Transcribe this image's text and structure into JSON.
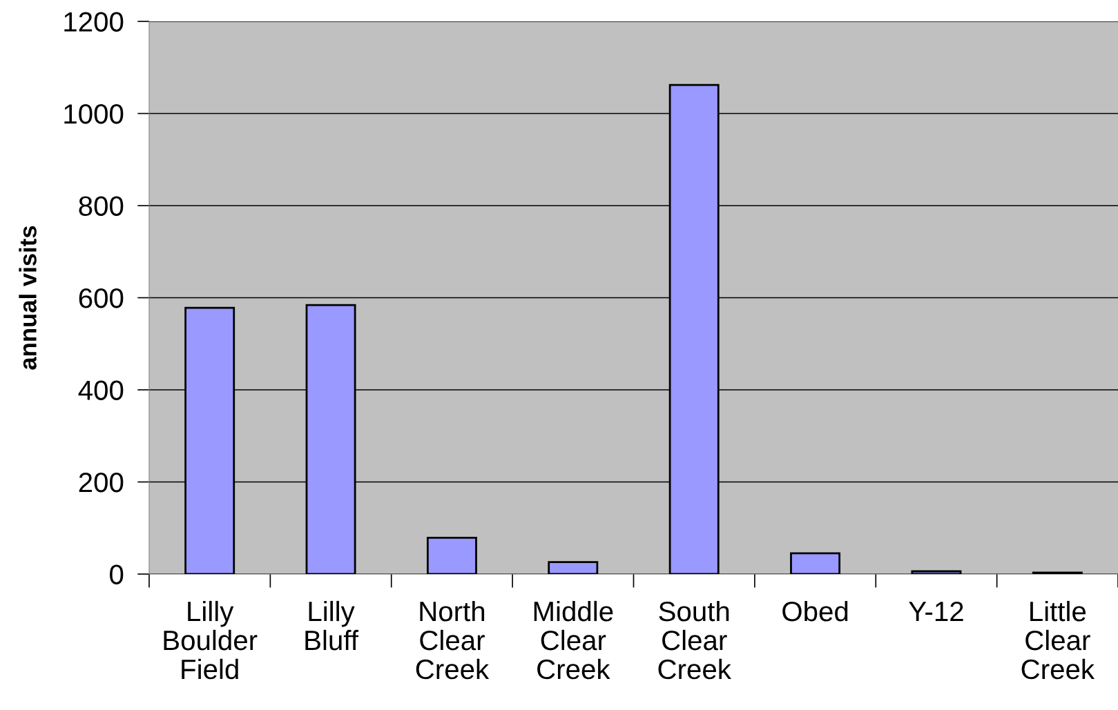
{
  "chart_data": {
    "type": "bar",
    "ylabel": "annual visits",
    "categories": [
      "Lilly Boulder Field",
      "Lilly Bluff",
      "North Clear Creek",
      "Middle Clear Creek",
      "South Clear Creek",
      "Obed",
      "Y-12",
      "Little Clear Creek"
    ],
    "values": [
      578,
      584,
      79,
      26,
      1062,
      45,
      6,
      3
    ],
    "color": "#9999ff",
    "ylim": [
      0,
      1200
    ],
    "yticks": [
      0,
      200,
      400,
      600,
      800,
      1000,
      1200
    ],
    "grid": "y"
  }
}
